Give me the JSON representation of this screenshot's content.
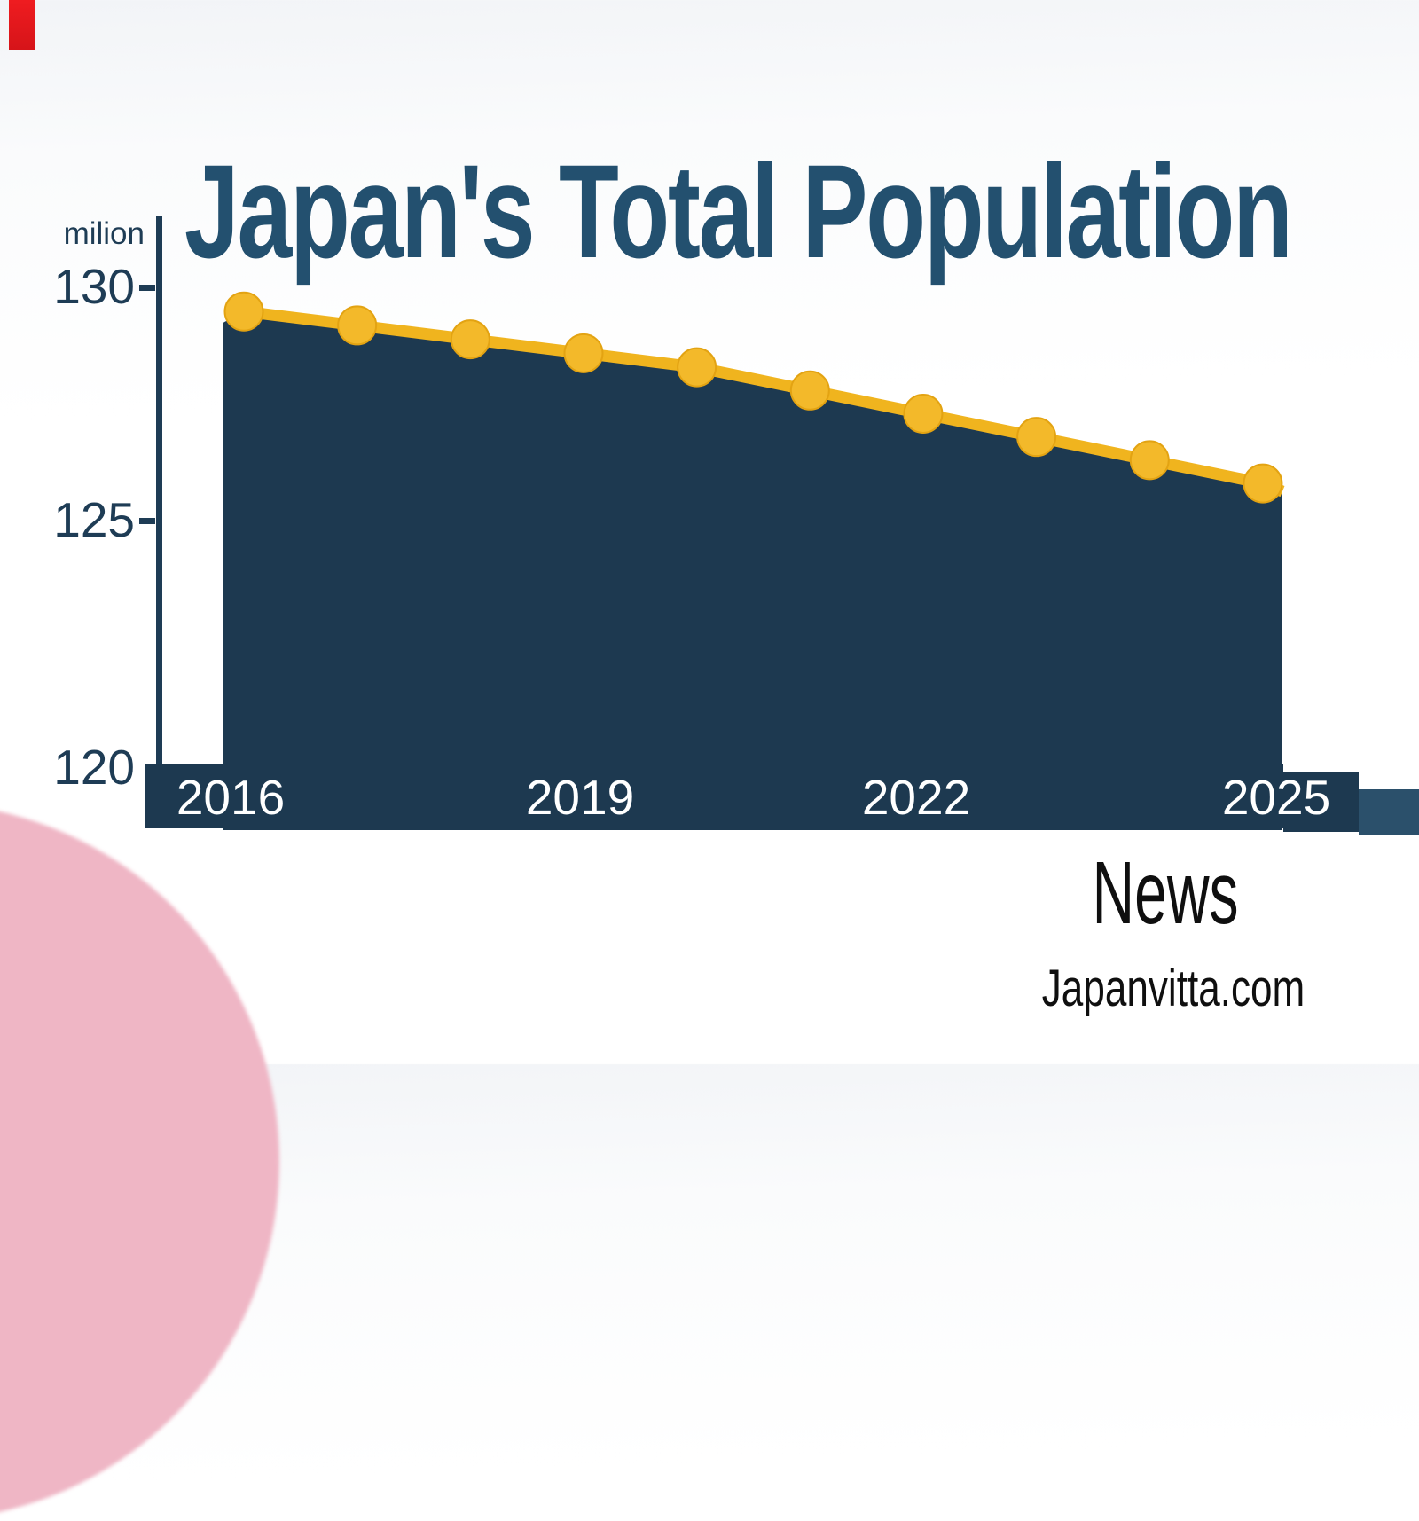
{
  "title": "Japan's Total Population",
  "chart_data": {
    "type": "area",
    "title": "Japan's Total Population",
    "ylabel": "milion",
    "x": [
      2016,
      2017,
      2018,
      2019,
      2020,
      2021,
      2022,
      2023,
      2024,
      2025
    ],
    "values": [
      129.5,
      129.2,
      128.9,
      128.6,
      128.3,
      127.8,
      127.3,
      126.8,
      126.3,
      125.8
    ],
    "x_tick_labels": [
      "2016",
      "2019",
      "2022",
      "2025"
    ],
    "y_tick_labels": [
      "130",
      "125",
      "120"
    ],
    "y_ticks": [
      130,
      125,
      120
    ],
    "ylim": [
      120,
      131
    ],
    "grid": false,
    "legend": false,
    "colors": {
      "line": "#f0b41e",
      "marker": "#f3b92a",
      "marker_edge": "#e3a312",
      "area": "#1d3950",
      "axis": "#1e3c55",
      "title_text": "#23506f",
      "x_band": "#1d3950",
      "x_label_text": "#ffffff"
    }
  },
  "footer": {
    "news_label": "News",
    "site_label": "Japanvitta.com"
  },
  "decor": {
    "pink_circle_color": "#efb6c5",
    "red_mark_color": "#e2171c"
  }
}
